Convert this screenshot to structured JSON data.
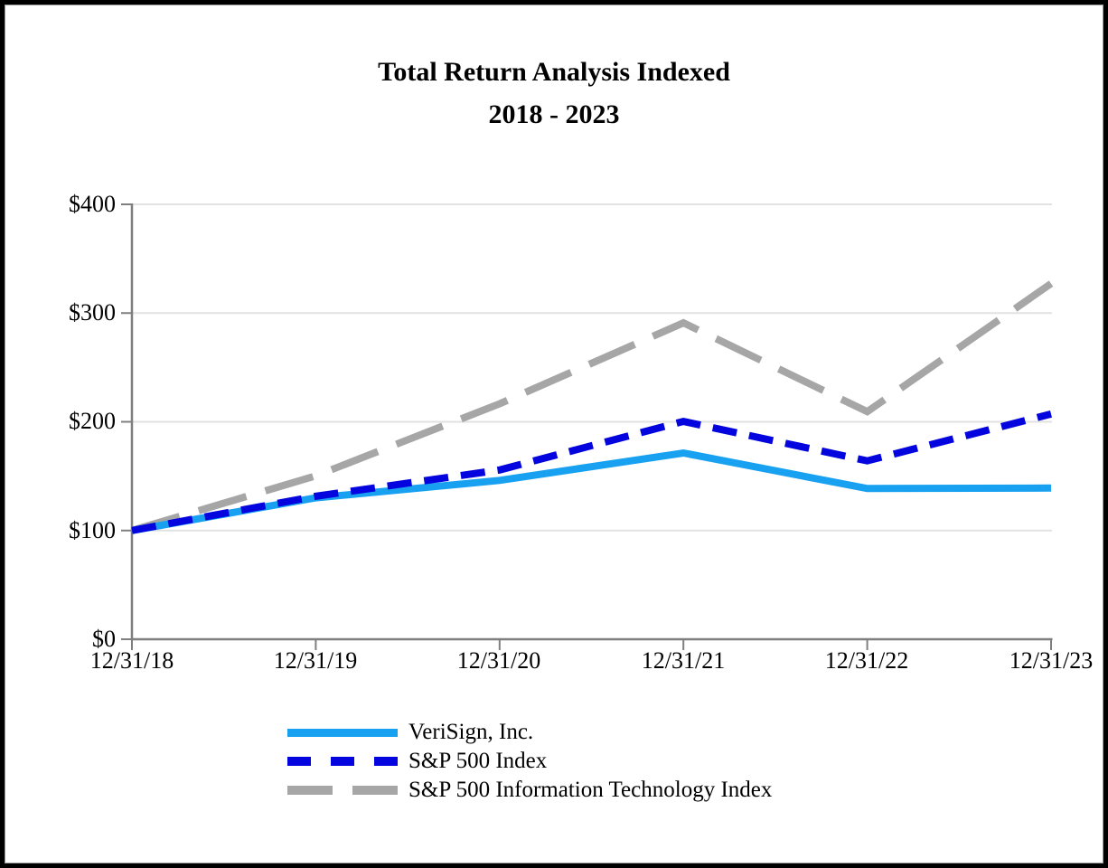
{
  "title": {
    "line1": "Total Return Analysis Indexed",
    "line2": "2018 - 2023"
  },
  "chart_data": {
    "type": "line",
    "title": "Total Return Analysis Indexed 2018 - 2023",
    "x_categories": [
      "12/31/18",
      "12/31/19",
      "12/31/20",
      "12/31/21",
      "12/31/22",
      "12/31/23"
    ],
    "y_tick_labels": [
      "$400",
      "$300",
      "$200",
      "$100",
      "$0"
    ],
    "ylim": [
      0,
      400
    ],
    "y_tick_interval": 100,
    "grid": "horizontal-only",
    "legend_position": "bottom-left",
    "series": [
      {
        "name": "VeriSign, Inc.",
        "color": "#18A1F0",
        "style": "solid",
        "values": [
          100.0,
          130.06,
          146.08,
          171.31,
          138.64,
          139.05
        ]
      },
      {
        "name": "S&P 500 Index",
        "color": "#0404DE",
        "style": "dashed",
        "values": [
          100.0,
          131.49,
          155.68,
          200.37,
          164.08,
          207.21
        ]
      },
      {
        "name": "S&P 500 Information Technology Index",
        "color": "#A6A6A6",
        "style": "long-dashed",
        "values": [
          100.0,
          150.29,
          216.57,
          291.0,
          209.33,
          327.13
        ]
      }
    ]
  },
  "colors": {
    "axis": "#7F7F7F",
    "gridline": "#E2E2E2",
    "frame_border": "#000000",
    "text": "#000000"
  }
}
